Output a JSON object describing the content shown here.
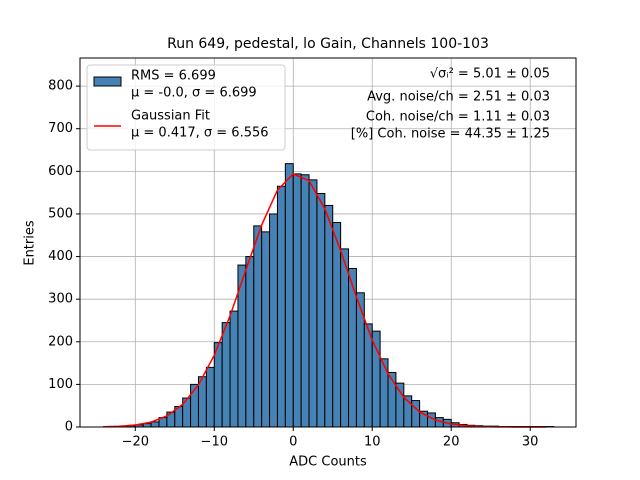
{
  "chart_data": {
    "type": "histogram",
    "title": "Run 649, pedestal, lo Gain, Channels 100-103",
    "x_label": "ADC Counts",
    "y_label": "Entries",
    "xlim": [
      -27.0,
      35.8
    ],
    "ylim": [
      0,
      866
    ],
    "xticks": [
      {
        "value": -20,
        "label": "−20"
      },
      {
        "value": -10,
        "label": "−10"
      },
      0,
      10,
      20,
      30
    ],
    "yticks": [
      0,
      100,
      200,
      300,
      400,
      500,
      600,
      700,
      800
    ],
    "grid": true,
    "legend_position": "upper left",
    "bins": [
      -24,
      -23,
      -22,
      -21,
      -20,
      -19,
      -18,
      -17,
      -16,
      -15,
      -14,
      -13,
      -12,
      -11,
      -10,
      -9,
      -8,
      -7,
      -6,
      -5,
      -4,
      -3,
      -2,
      -1,
      0,
      1,
      2,
      3,
      4,
      5,
      6,
      7,
      8,
      9,
      10,
      11,
      12,
      13,
      14,
      15,
      16,
      17,
      18,
      19,
      20,
      21,
      22,
      23,
      24,
      25,
      26,
      27,
      28,
      29,
      30,
      31,
      32,
      33
    ],
    "counts": [
      1,
      1,
      2,
      3,
      5,
      8,
      12,
      22,
      35,
      48,
      68,
      100,
      118,
      140,
      198,
      245,
      272,
      380,
      400,
      472,
      458,
      500,
      565,
      618,
      594,
      592,
      580,
      548,
      520,
      480,
      418,
      372,
      315,
      242,
      225,
      160,
      128,
      103,
      73,
      62,
      37,
      33,
      22,
      18,
      10,
      6,
      4,
      3,
      2,
      2,
      1,
      1,
      1,
      1,
      1,
      1,
      1
    ],
    "hist_color": "#4682b4",
    "hist_legend": [
      "RMS = 6.699",
      "μ = -0.0, σ = 6.699"
    ],
    "fit": {
      "color": "#ff0000",
      "legend": [
        "Gaussian Fit",
        "μ = 0.417, σ = 6.556"
      ],
      "x": [
        -24,
        -22,
        -20,
        -18,
        -16,
        -14,
        -12,
        -10,
        -8,
        -6,
        -4,
        -2,
        0,
        2,
        4,
        6,
        8,
        10,
        12,
        14,
        16,
        18,
        20,
        22,
        24,
        26,
        28,
        30,
        32
      ],
      "values": [
        0.58,
        1.72,
        4.66,
        11.5,
        25.9,
        53.0,
        98.9,
        168.4,
        261,
        368.5,
        474,
        556,
        594,
        578,
        512,
        414,
        305,
        204,
        125,
        69.6,
        35.3,
        16.3,
        6.9,
        2.6,
        0.9,
        0.3,
        0.08,
        0.02,
        0.0
      ]
    },
    "annotations": [
      "√σᵢ² = 5.01 ± 0.05",
      "Avg. noise/ch = 2.51 ± 0.03",
      "Coh. noise/ch = 1.11 ± 0.03",
      "[%] Coh. noise = 44.35 ± 1.25"
    ]
  }
}
